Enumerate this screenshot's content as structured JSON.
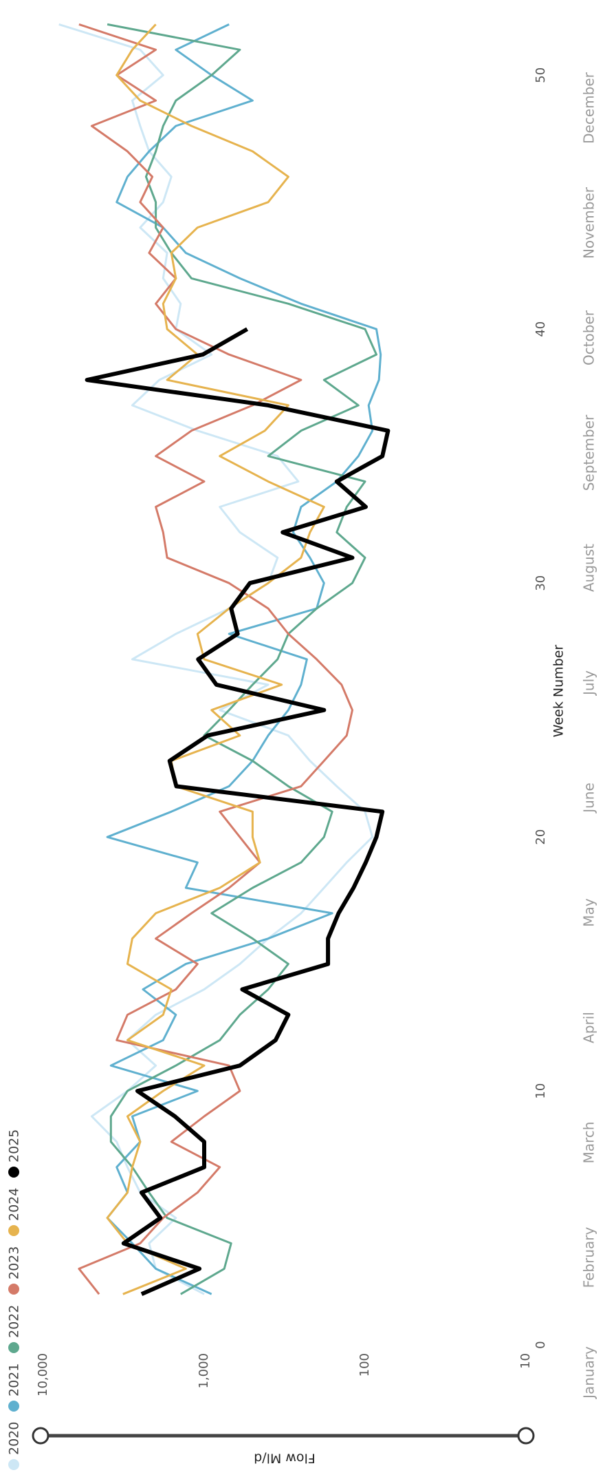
{
  "chart_data": {
    "type": "line",
    "x_title": "Week Number",
    "y_title": "Flow Ml/d",
    "x": [
      2,
      3,
      4,
      5,
      6,
      7,
      8,
      9,
      10,
      11,
      12,
      13,
      14,
      15,
      16,
      17,
      18,
      19,
      20,
      21,
      22,
      23,
      24,
      25,
      26,
      27,
      28,
      29,
      30,
      31,
      32,
      33,
      34,
      35,
      36,
      37,
      38,
      39,
      40,
      41,
      42,
      43,
      44,
      45,
      46,
      47,
      48,
      49,
      50,
      51,
      52
    ],
    "xlim": [
      -1,
      52.5
    ],
    "xticks": [
      0,
      10,
      20,
      30,
      40,
      50
    ],
    "month_labels": [
      "January",
      "February",
      "March",
      "April",
      "May",
      "June",
      "July",
      "August",
      "September",
      "October",
      "November",
      "December"
    ],
    "ylim": [
      10,
      10000
    ],
    "log_scale": true,
    "yticks": [
      10,
      100,
      {
        "value": 1000,
        "label": "1,000"
      },
      {
        "value": 10000,
        "label": "10,000"
      }
    ],
    "grid": false,
    "legend": "top-left",
    "series": [
      {
        "name": "2020",
        "color": "#cde7f5",
        "values": [
          1000,
          2000,
          2200,
          1500,
          2500,
          3000,
          3500,
          5000,
          3000,
          2000,
          3000,
          2000,
          1000,
          600,
          400,
          250,
          180,
          130,
          90,
          100,
          150,
          220,
          300,
          800,
          400,
          2800,
          1500,
          700,
          400,
          350,
          600,
          800,
          260,
          350,
          1100,
          2800,
          1900,
          900,
          1500,
          1400,
          1800,
          1700,
          2500,
          1800,
          1600,
          2200,
          2500,
          2800,
          1800,
          2500,
          8000
        ]
      },
      {
        "name": "2021",
        "color": "#5fb0cf",
        "values": [
          900,
          2000,
          2800,
          4000,
          3000,
          3500,
          2500,
          2800,
          1100,
          3800,
          1800,
          1500,
          2400,
          1300,
          400,
          160,
          1300,
          1100,
          4000,
          1600,
          700,
          500,
          400,
          300,
          250,
          230,
          700,
          200,
          180,
          220,
          280,
          250,
          150,
          110,
          90,
          95,
          82,
          80,
          85,
          250,
          600,
          1300,
          1800,
          3500,
          3000,
          2200,
          1500,
          500,
          900,
          1500,
          700
        ]
      },
      {
        "name": "2022",
        "color": "#5ea88e",
        "values": [
          1400,
          750,
          680,
          1700,
          2200,
          2800,
          3800,
          3800,
          3000,
          1500,
          800,
          600,
          400,
          300,
          500,
          900,
          500,
          250,
          180,
          160,
          300,
          500,
          1000,
          700,
          500,
          350,
          300,
          200,
          120,
          100,
          150,
          130,
          100,
          400,
          250,
          110,
          180,
          85,
          100,
          300,
          1200,
          1600,
          2000,
          2000,
          2300,
          2000,
          1800,
          1500,
          900,
          600,
          4000
        ]
      },
      {
        "name": "2023",
        "color": "#d47a68",
        "values": [
          4500,
          6000,
          2500,
          1800,
          1100,
          800,
          1600,
          1000,
          600,
          700,
          3500,
          3000,
          1500,
          1100,
          2000,
          1200,
          700,
          450,
          600,
          800,
          250,
          180,
          130,
          120,
          140,
          200,
          300,
          400,
          700,
          1700,
          1800,
          2000,
          1000,
          2000,
          1200,
          500,
          250,
          700,
          1500,
          2000,
          1500,
          2200,
          1800,
          2500,
          2100,
          3000,
          5000,
          2000,
          3500,
          2000,
          6000
        ]
      },
      {
        "name": "2024",
        "color": "#e6b34e",
        "values": [
          3200,
          1300,
          3000,
          4000,
          3000,
          2800,
          2500,
          3000,
          1800,
          1000,
          3000,
          1800,
          1600,
          3000,
          2800,
          2000,
          800,
          450,
          500,
          500,
          1500,
          1600,
          600,
          900,
          330,
          1000,
          1100,
          700,
          400,
          250,
          220,
          180,
          400,
          800,
          420,
          300,
          1700,
          1100,
          1700,
          1800,
          1500,
          1600,
          1100,
          400,
          300,
          500,
          1200,
          2500,
          3500,
          2800,
          2000
        ]
      },
      {
        "name": "2025",
        "color": "#000000",
        "values": [
          2450,
          1070,
          3170,
          1870,
          2450,
          1000,
          1000,
          1520,
          2600,
          600,
          360,
          300,
          580,
          170,
          170,
          146,
          118,
          99,
          85,
          78,
          1490,
          1640,
          950,
          180,
          840,
          1090,
          620,
          680,
          520,
          120,
          325,
          99,
          150,
          78,
          72,
          400,
          5350,
          1020,
          540,
          null,
          null,
          null,
          null,
          null,
          null,
          null,
          null,
          null,
          null,
          null,
          null
        ]
      }
    ]
  }
}
